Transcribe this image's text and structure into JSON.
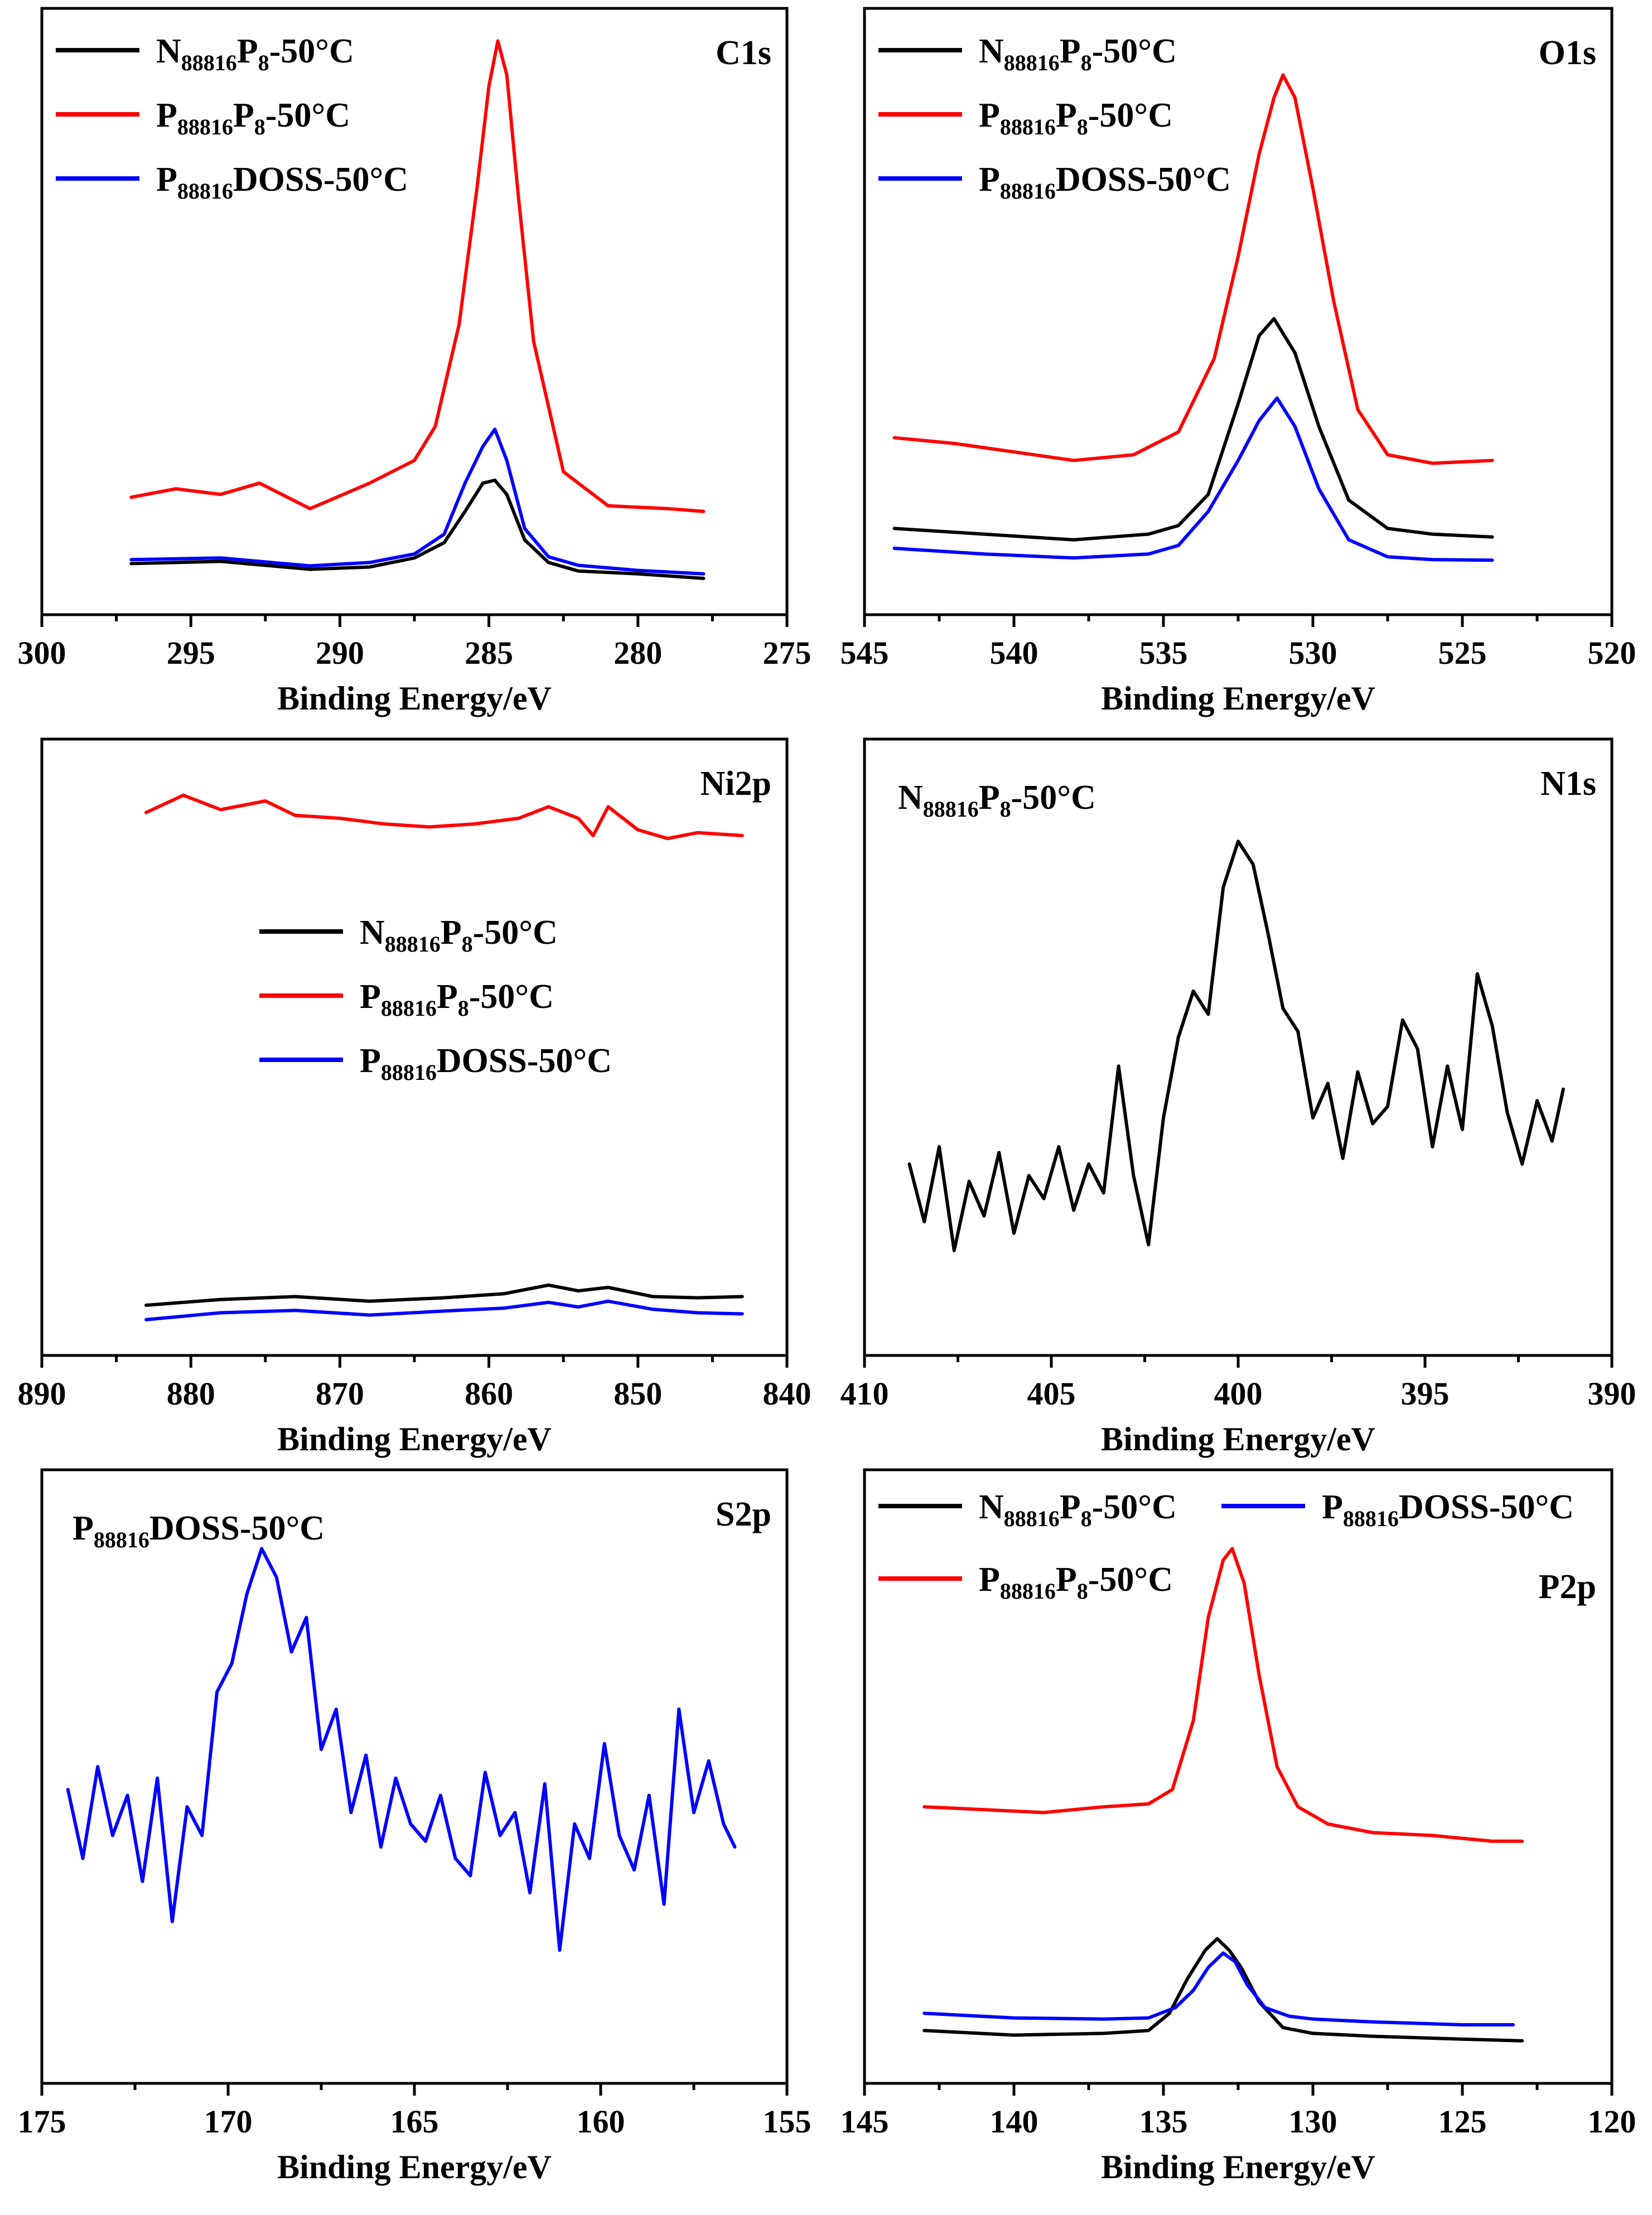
{
  "figure_title": "XPS spectra",
  "colors": {
    "black": "#000000",
    "red": "#ff0000",
    "blue": "#0000ff"
  },
  "chart_data": [
    {
      "id": "c1s",
      "type": "line",
      "title": "C1s",
      "xlabel": "Binding Energy/eV",
      "ylabel": "",
      "xlim": [
        300,
        275
      ],
      "x_ticks": [
        300,
        295,
        290,
        285,
        280,
        275
      ],
      "ylim": [
        0,
        100
      ],
      "y_ticks_shown": false,
      "legend": "top-left",
      "legend_entries": [
        {
          "main": "N",
          "sub1": "88816",
          "mid": "P",
          "sub2": "8",
          "tail": "-50°C",
          "color": "#000000"
        },
        {
          "main": "P",
          "sub1": "88816",
          "mid": "P",
          "sub2": "8",
          "tail": "-50°C",
          "color": "#ff0000"
        },
        {
          "main": "P",
          "sub1": "88816",
          "mid": "DOSS-50°C",
          "sub2": "",
          "tail": "",
          "color": "#0000ff"
        }
      ],
      "series": [
        {
          "name": "N88816P8-50°C",
          "color": "#000000",
          "x": [
            297,
            294,
            291,
            289,
            287.5,
            286.5,
            285.8,
            285.2,
            284.8,
            284.4,
            283.8,
            283,
            282,
            280,
            277.8
          ],
          "y": [
            5.8,
            6.2,
            4.8,
            5.2,
            6.8,
            9.5,
            15,
            20,
            20.5,
            18,
            10,
            6,
            4.5,
            4.0,
            3.2
          ]
        },
        {
          "name": "P88816P8-50°C",
          "color": "#ff0000",
          "x": [
            297,
            295.5,
            294,
            292.7,
            291,
            289,
            287.5,
            286.8,
            286,
            285.4,
            285.0,
            284.7,
            284.4,
            284.0,
            283.5,
            282.5,
            281,
            279,
            277.8
          ],
          "y": [
            17.5,
            19,
            18,
            20,
            15.5,
            20,
            24,
            30,
            48,
            72,
            90,
            98,
            92,
            70,
            45,
            22,
            16,
            15.5,
            15
          ]
        },
        {
          "name": "P88816DOSS-50°C",
          "color": "#0000ff",
          "x": [
            297,
            294,
            291,
            289,
            287.5,
            286.5,
            285.8,
            285.2,
            284.8,
            284.4,
            283.8,
            283,
            282,
            280,
            277.8
          ],
          "y": [
            6.5,
            6.8,
            5.4,
            6.0,
            7.5,
            11,
            20,
            26.5,
            29.5,
            24,
            12,
            7,
            5.5,
            4.6,
            4.0
          ]
        }
      ]
    },
    {
      "id": "o1s",
      "type": "line",
      "title": "O1s",
      "xlabel": "Binding Energy/eV",
      "ylabel": "",
      "xlim": [
        545,
        520
      ],
      "x_ticks": [
        545,
        540,
        535,
        530,
        525,
        520
      ],
      "ylim": [
        0,
        100
      ],
      "y_ticks_shown": false,
      "legend": "top-left",
      "legend_entries": [
        {
          "main": "N",
          "sub1": "88816",
          "mid": "P",
          "sub2": "8",
          "tail": "-50°C",
          "color": "#000000"
        },
        {
          "main": "P",
          "sub1": "88816",
          "mid": "P",
          "sub2": "8",
          "tail": "-50°C",
          "color": "#ff0000"
        },
        {
          "main": "P",
          "sub1": "88816",
          "mid": "DOSS-50°C",
          "sub2": "",
          "tail": "",
          "color": "#0000ff"
        }
      ],
      "series": [
        {
          "name": "N88816P8-50°C",
          "color": "#000000",
          "x": [
            544,
            541,
            538,
            535.5,
            534.5,
            533.5,
            532.5,
            531.8,
            531.3,
            530.6,
            529.8,
            528.8,
            527.5,
            526,
            524
          ],
          "y": [
            12,
            11,
            10,
            11,
            12.5,
            18,
            34,
            46,
            49,
            43,
            30,
            17,
            12,
            11,
            10.5
          ]
        },
        {
          "name": "P88816P8-50°C",
          "color": "#ff0000",
          "x": [
            544,
            542,
            540,
            538,
            536,
            534.5,
            533.3,
            532.5,
            531.8,
            531.3,
            531.0,
            530.6,
            530.0,
            529.3,
            528.5,
            527.5,
            526,
            524
          ],
          "y": [
            28,
            27,
            25.5,
            24,
            25,
            29,
            42,
            60,
            78,
            88,
            92,
            88,
            72,
            52,
            33,
            25,
            23.5,
            24
          ]
        },
        {
          "name": "P88816DOSS-50°C",
          "color": "#0000ff",
          "x": [
            544,
            541,
            538,
            535.5,
            534.5,
            533.5,
            532.5,
            531.8,
            531.2,
            530.6,
            529.8,
            528.8,
            527.5,
            526,
            524
          ],
          "y": [
            8.5,
            7.5,
            6.8,
            7.5,
            9,
            15,
            24,
            31,
            35,
            30,
            19,
            10,
            7,
            6.5,
            6.4
          ]
        }
      ]
    },
    {
      "id": "ni2p",
      "type": "line",
      "title": "Ni2p",
      "xlabel": "Binding Energy/eV",
      "ylabel": "",
      "xlim": [
        890,
        840
      ],
      "x_ticks": [
        890,
        880,
        870,
        860,
        850,
        840
      ],
      "ylim": [
        0,
        100
      ],
      "y_ticks_shown": false,
      "legend": "center-left",
      "legend_entries": [
        {
          "main": "N",
          "sub1": "88816",
          "mid": "P",
          "sub2": "8",
          "tail": "-50°C",
          "color": "#000000"
        },
        {
          "main": "P",
          "sub1": "88816",
          "mid": "P",
          "sub2": "8",
          "tail": "-50°C",
          "color": "#ff0000"
        },
        {
          "main": "P",
          "sub1": "88816",
          "mid": "DOSS-50°C",
          "sub2": "",
          "tail": "",
          "color": "#0000ff"
        }
      ],
      "series": [
        {
          "name": "N88816P8-50°C",
          "color": "#000000",
          "x": [
            883,
            878,
            873,
            868,
            863,
            859,
            856,
            854,
            852,
            849,
            846,
            843
          ],
          "y": [
            5.5,
            6.5,
            7.0,
            6.2,
            6.8,
            7.5,
            9.0,
            8.0,
            8.6,
            7.0,
            6.8,
            7.0
          ]
        },
        {
          "name": "P88816P8-50°C",
          "color": "#ff0000",
          "x": [
            883,
            880.5,
            878,
            875,
            873,
            870,
            867,
            864,
            861,
            858,
            856,
            854,
            853,
            852,
            850,
            848,
            846,
            843
          ],
          "y": [
            91,
            94,
            91.5,
            93,
            90.5,
            90,
            89,
            88.5,
            89,
            90,
            92,
            90,
            87,
            92,
            88,
            86.5,
            87.5,
            87
          ]
        },
        {
          "name": "P88816DOSS-50°C",
          "color": "#0000ff",
          "x": [
            883,
            878,
            873,
            868,
            863,
            859,
            856,
            854,
            852,
            849,
            846,
            843
          ],
          "y": [
            3.0,
            4.2,
            4.6,
            3.8,
            4.5,
            5.0,
            6.0,
            5.2,
            6.2,
            4.8,
            4.2,
            4.0
          ]
        }
      ]
    },
    {
      "id": "n1s",
      "type": "line",
      "title": "N1s",
      "xlabel": "Binding Energy/eV",
      "ylabel": "",
      "xlim": [
        410,
        390
      ],
      "x_ticks": [
        410,
        405,
        400,
        395,
        390
      ],
      "ylim": [
        0,
        100
      ],
      "y_ticks_shown": false,
      "legend": "top-left",
      "legend_entries": [
        {
          "main": "N",
          "sub1": "88816",
          "mid": "P",
          "sub2": "8",
          "tail": "-50°C",
          "color": "#000000"
        }
      ],
      "series": [
        {
          "name": "N88816P8-50°C",
          "color": "#000000",
          "x": [
            408.8,
            408.4,
            408.0,
            407.6,
            407.2,
            406.8,
            406.4,
            406.0,
            405.6,
            405.2,
            404.8,
            404.4,
            404.0,
            403.6,
            403.2,
            402.8,
            402.4,
            402.0,
            401.6,
            401.2,
            400.8,
            400.4,
            400.0,
            399.6,
            399.2,
            398.8,
            398.4,
            398.0,
            397.6,
            397.2,
            396.8,
            396.4,
            396.0,
            395.6,
            395.2,
            394.8,
            394.4,
            394.0,
            393.6,
            393.2,
            392.8,
            392.4,
            392.0,
            391.6,
            391.3
          ],
          "y": [
            30,
            20,
            33,
            15,
            27,
            21,
            32,
            18,
            28,
            24,
            33,
            22,
            30,
            25,
            47,
            28,
            16,
            38,
            52,
            60,
            56,
            78,
            86,
            82,
            70,
            57,
            53,
            38,
            44,
            31,
            46,
            37,
            40,
            55,
            50,
            33,
            47,
            36,
            63,
            54,
            39,
            30,
            41,
            34,
            43
          ]
        }
      ]
    },
    {
      "id": "s2p",
      "type": "line",
      "title": "S2p",
      "xlabel": "Binding Energy/eV",
      "ylabel": "",
      "xlim": [
        175,
        155
      ],
      "x_ticks": [
        175,
        170,
        165,
        160,
        155
      ],
      "ylim": [
        0,
        100
      ],
      "y_ticks_shown": false,
      "legend": "top-left",
      "legend_entries": [
        {
          "main": "P",
          "sub1": "88816",
          "mid": "DOSS-50°C",
          "sub2": "",
          "tail": "",
          "color": "#0000ff"
        }
      ],
      "series": [
        {
          "name": "P88816DOSS-50°C",
          "color": "#0000ff",
          "x": [
            174.3,
            173.9,
            173.5,
            173.1,
            172.7,
            172.3,
            171.9,
            171.5,
            171.1,
            170.7,
            170.3,
            169.9,
            169.5,
            169.1,
            168.7,
            168.3,
            167.9,
            167.5,
            167.1,
            166.7,
            166.3,
            165.9,
            165.5,
            165.1,
            164.7,
            164.3,
            163.9,
            163.5,
            163.1,
            162.7,
            162.3,
            161.9,
            161.5,
            161.1,
            160.7,
            160.3,
            159.9,
            159.5,
            159.1,
            158.7,
            158.3,
            157.9,
            157.5,
            157.1,
            156.7,
            156.4
          ],
          "y": [
            48,
            36,
            52,
            40,
            47,
            32,
            50,
            25,
            45,
            40,
            65,
            70,
            82,
            90,
            85,
            72,
            78,
            55,
            62,
            44,
            54,
            38,
            50,
            42,
            39,
            47,
            36,
            33,
            51,
            40,
            44,
            30,
            49,
            20,
            42,
            36,
            56,
            40,
            34,
            47,
            28,
            62,
            44,
            53,
            42,
            38
          ]
        }
      ]
    },
    {
      "id": "p2p",
      "type": "line",
      "title": "P2p",
      "xlabel": "Binding Energy/eV",
      "ylabel": "",
      "xlim": [
        145,
        120
      ],
      "x_ticks": [
        145,
        140,
        135,
        130,
        125,
        120
      ],
      "ylim": [
        0,
        100
      ],
      "y_ticks_shown": false,
      "legend": "top",
      "legend_entries": [
        {
          "main": "N",
          "sub1": "88816",
          "mid": "P",
          "sub2": "8",
          "tail": "-50°C",
          "color": "#000000"
        },
        {
          "main": "P",
          "sub1": "88816",
          "mid": "DOSS-50°C",
          "sub2": "",
          "tail": "",
          "color": "#0000ff"
        },
        {
          "main": "P",
          "sub1": "88816",
          "mid": "P",
          "sub2": "8",
          "tail": "-50°C",
          "color": "#ff0000"
        }
      ],
      "series": [
        {
          "name": "N88816P8-50°C",
          "color": "#000000",
          "x": [
            143,
            140,
            137,
            135.5,
            134.8,
            134.2,
            133.6,
            133.2,
            132.8,
            132.4,
            131.8,
            131.0,
            130,
            128,
            125,
            123
          ],
          "y": [
            6,
            5.2,
            5.5,
            6,
            9,
            15,
            20,
            22,
            20,
            17,
            11,
            6.5,
            5.5,
            5,
            4.5,
            4.2
          ]
        },
        {
          "name": "P88816P8-50°C",
          "color": "#ff0000",
          "x": [
            143,
            141,
            139,
            137,
            135.5,
            134.7,
            134.0,
            133.5,
            133.0,
            132.7,
            132.3,
            131.8,
            131.2,
            130.5,
            129.5,
            128,
            126,
            124,
            123
          ],
          "y": [
            45,
            44.5,
            44,
            45,
            45.5,
            48,
            60,
            78,
            88,
            90,
            84,
            68,
            52,
            45,
            42,
            40.5,
            40,
            39,
            39
          ]
        },
        {
          "name": "P88816DOSS-50°C",
          "color": "#0000ff",
          "x": [
            143,
            140,
            137,
            135.5,
            134.6,
            134.0,
            133.5,
            133.0,
            132.6,
            132.2,
            131.6,
            130.8,
            130,
            128,
            125,
            123.3
          ],
          "y": [
            9,
            8.2,
            8.0,
            8.2,
            10,
            13,
            17,
            19.5,
            18,
            14,
            10,
            8.5,
            8,
            7.5,
            7,
            7
          ]
        }
      ]
    }
  ]
}
